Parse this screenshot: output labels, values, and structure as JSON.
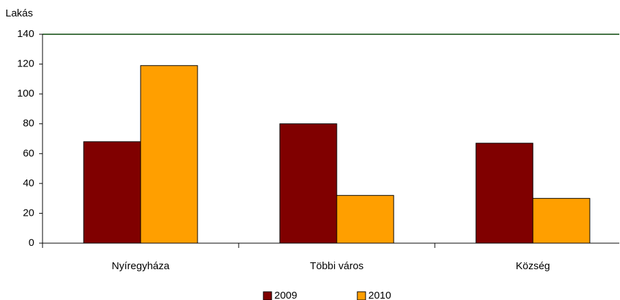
{
  "chart_data": {
    "type": "bar",
    "y_label": "Lakás",
    "categories": [
      "Nyíregyháza",
      "Többi város",
      "Község"
    ],
    "series": [
      {
        "name": "2009",
        "color": "#800000",
        "values": [
          68,
          80,
          67
        ]
      },
      {
        "name": "2010",
        "color": "#ff9f00",
        "values": [
          119,
          32,
          30
        ]
      }
    ],
    "ylim": [
      0,
      140
    ],
    "yticks": [
      0,
      20,
      40,
      60,
      80,
      100,
      120,
      140
    ],
    "grid": false,
    "legend": "bottom"
  }
}
